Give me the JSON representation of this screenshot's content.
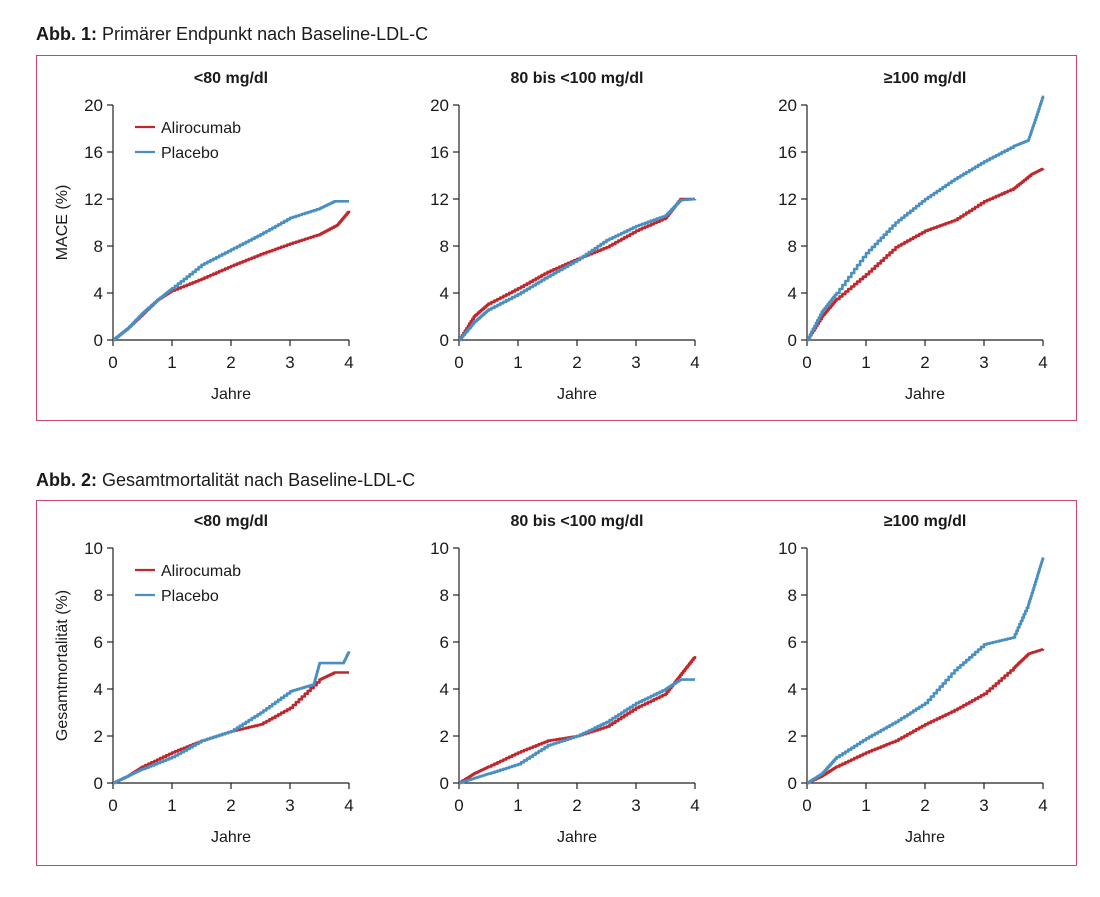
{
  "figures": [
    {
      "label": "Abb. 1:",
      "title": "Primärer Endpunkt nach Baseline-LDL-C",
      "ylabel": "MACE (%)",
      "xlabel": "Jahre"
    },
    {
      "label": "Abb. 2:",
      "title": "Gesamtmortalität nach Baseline-LDL-C",
      "ylabel": "Gesamtmortalität (%)",
      "xlabel": "Jahre"
    }
  ],
  "colors": {
    "alirocumab": "#c0272d",
    "placebo": "#4a8fc2",
    "frame": "#c8457a"
  },
  "chart_data": [
    {
      "type": "line",
      "figure": 0,
      "panel": 0,
      "title": "<80 mg/dl",
      "xlabel": "Jahre",
      "ylabel": "MACE (%)",
      "xlim": [
        0,
        4
      ],
      "ylim": [
        0,
        20
      ],
      "xticks": [
        0,
        1,
        2,
        3,
        4
      ],
      "yticks": [
        0,
        4,
        8,
        12,
        16,
        20
      ],
      "legend": "top-left",
      "series": [
        {
          "name": "Alirocumab",
          "color": "#c0272d",
          "x": [
            0,
            0.25,
            0.5,
            0.75,
            1.0,
            1.5,
            2.0,
            2.5,
            3.0,
            3.5,
            3.8,
            4.0
          ],
          "y": [
            0,
            1.0,
            2.2,
            3.4,
            4.2,
            5.2,
            6.3,
            7.3,
            8.2,
            9.0,
            9.8,
            11.0
          ]
        },
        {
          "name": "Placebo",
          "color": "#4a8fc2",
          "x": [
            0,
            0.25,
            0.5,
            0.75,
            1.0,
            1.5,
            2.0,
            2.5,
            3.0,
            3.5,
            3.75,
            4.0
          ],
          "y": [
            0,
            1.0,
            2.3,
            3.4,
            4.4,
            6.4,
            7.7,
            9.0,
            10.4,
            11.2,
            11.8,
            11.8
          ]
        }
      ]
    },
    {
      "type": "line",
      "figure": 0,
      "panel": 1,
      "title": "80 bis <100 mg/dl",
      "xlabel": "Jahre",
      "xlim": [
        0,
        4
      ],
      "ylim": [
        0,
        20
      ],
      "xticks": [
        0,
        1,
        2,
        3,
        4
      ],
      "yticks": [
        0,
        4,
        8,
        12,
        16,
        20
      ],
      "series": [
        {
          "name": "Alirocumab",
          "color": "#c0272d",
          "x": [
            0,
            0.25,
            0.5,
            1.0,
            1.5,
            2.0,
            2.5,
            3.0,
            3.5,
            3.75,
            4.0
          ],
          "y": [
            0,
            2.0,
            3.1,
            4.4,
            5.8,
            6.9,
            7.9,
            9.3,
            10.4,
            12.0,
            12.0
          ]
        },
        {
          "name": "Placebo",
          "color": "#4a8fc2",
          "x": [
            0,
            0.25,
            0.5,
            1.0,
            1.5,
            2.0,
            2.5,
            3.0,
            3.5,
            3.75,
            4.0
          ],
          "y": [
            0,
            1.5,
            2.6,
            3.9,
            5.4,
            6.8,
            8.5,
            9.7,
            10.6,
            11.9,
            12.0
          ]
        }
      ]
    },
    {
      "type": "line",
      "figure": 0,
      "panel": 2,
      "title": "≥100 mg/dl",
      "xlabel": "Jahre",
      "xlim": [
        0,
        4
      ],
      "ylim": [
        0,
        20
      ],
      "xticks": [
        0,
        1,
        2,
        3,
        4
      ],
      "yticks": [
        0,
        4,
        8,
        12,
        16,
        20
      ],
      "series": [
        {
          "name": "Alirocumab",
          "color": "#c0272d",
          "x": [
            0,
            0.25,
            0.5,
            1.0,
            1.5,
            2.0,
            2.5,
            3.0,
            3.5,
            3.8,
            4.0
          ],
          "y": [
            0,
            2.0,
            3.5,
            5.6,
            7.9,
            9.3,
            10.2,
            11.8,
            12.9,
            14.1,
            14.6
          ]
        },
        {
          "name": "Placebo",
          "color": "#4a8fc2",
          "x": [
            0,
            0.25,
            0.5,
            1.0,
            1.5,
            2.0,
            2.5,
            3.0,
            3.5,
            3.75,
            3.85,
            4.0
          ],
          "y": [
            0,
            2.4,
            4.0,
            7.4,
            10.0,
            12.0,
            13.7,
            15.2,
            16.5,
            17.0,
            18.5,
            20.8
          ]
        }
      ]
    },
    {
      "type": "line",
      "figure": 1,
      "panel": 0,
      "title": "<80 mg/dl",
      "xlabel": "Jahre",
      "ylabel": "Gesamtmortalität (%)",
      "xlim": [
        0,
        4
      ],
      "ylim": [
        0,
        10
      ],
      "xticks": [
        0,
        1,
        2,
        3,
        4
      ],
      "yticks": [
        0,
        2,
        4,
        6,
        8,
        10
      ],
      "legend": "top-left",
      "series": [
        {
          "name": "Alirocumab",
          "color": "#c0272d",
          "x": [
            0,
            0.25,
            0.5,
            1.0,
            1.5,
            2.0,
            2.5,
            3.0,
            3.5,
            3.75,
            4.0
          ],
          "y": [
            0,
            0.3,
            0.7,
            1.3,
            1.8,
            2.2,
            2.5,
            3.2,
            4.4,
            4.7,
            4.7
          ]
        },
        {
          "name": "Placebo",
          "color": "#4a8fc2",
          "x": [
            0,
            0.25,
            0.5,
            1.0,
            1.5,
            2.0,
            2.5,
            3.0,
            3.4,
            3.5,
            3.9,
            4.0
          ],
          "y": [
            0,
            0.3,
            0.6,
            1.1,
            1.8,
            2.2,
            3.0,
            3.9,
            4.2,
            5.1,
            5.1,
            5.6
          ]
        }
      ]
    },
    {
      "type": "line",
      "figure": 1,
      "panel": 1,
      "title": "80 bis <100 mg/dl",
      "xlabel": "Jahre",
      "xlim": [
        0,
        4
      ],
      "ylim": [
        0,
        10
      ],
      "xticks": [
        0,
        1,
        2,
        3,
        4
      ],
      "yticks": [
        0,
        2,
        4,
        6,
        8,
        10
      ],
      "series": [
        {
          "name": "Alirocumab",
          "color": "#c0272d",
          "x": [
            0,
            0.25,
            0.5,
            1.0,
            1.5,
            2.0,
            2.5,
            3.0,
            3.5,
            3.75,
            4.0
          ],
          "y": [
            0,
            0.4,
            0.7,
            1.3,
            1.8,
            2.0,
            2.4,
            3.2,
            3.8,
            4.6,
            5.4
          ]
        },
        {
          "name": "Placebo",
          "color": "#4a8fc2",
          "x": [
            0,
            0.25,
            0.5,
            1.0,
            1.5,
            2.0,
            2.5,
            3.0,
            3.5,
            3.75,
            4.0
          ],
          "y": [
            0,
            0.2,
            0.4,
            0.8,
            1.6,
            2.0,
            2.6,
            3.4,
            4.0,
            4.4,
            4.4
          ]
        }
      ]
    },
    {
      "type": "line",
      "figure": 1,
      "panel": 2,
      "title": "≥100 mg/dl",
      "xlabel": "Jahre",
      "xlim": [
        0,
        4
      ],
      "ylim": [
        0,
        10
      ],
      "xticks": [
        0,
        1,
        2,
        3,
        4
      ],
      "yticks": [
        0,
        2,
        4,
        6,
        8,
        10
      ],
      "series": [
        {
          "name": "Alirocumab",
          "color": "#c0272d",
          "x": [
            0,
            0.25,
            0.5,
            1.0,
            1.5,
            2.0,
            2.5,
            3.0,
            3.5,
            3.75,
            4.0
          ],
          "y": [
            0,
            0.3,
            0.7,
            1.3,
            1.8,
            2.5,
            3.1,
            3.8,
            4.9,
            5.5,
            5.7
          ]
        },
        {
          "name": "Placebo",
          "color": "#4a8fc2",
          "x": [
            0,
            0.25,
            0.5,
            1.0,
            1.5,
            2.0,
            2.5,
            3.0,
            3.5,
            3.75,
            3.9,
            4.0
          ],
          "y": [
            0,
            0.4,
            1.1,
            1.9,
            2.6,
            3.4,
            4.8,
            5.9,
            6.2,
            7.6,
            8.8,
            9.6
          ]
        }
      ]
    }
  ]
}
